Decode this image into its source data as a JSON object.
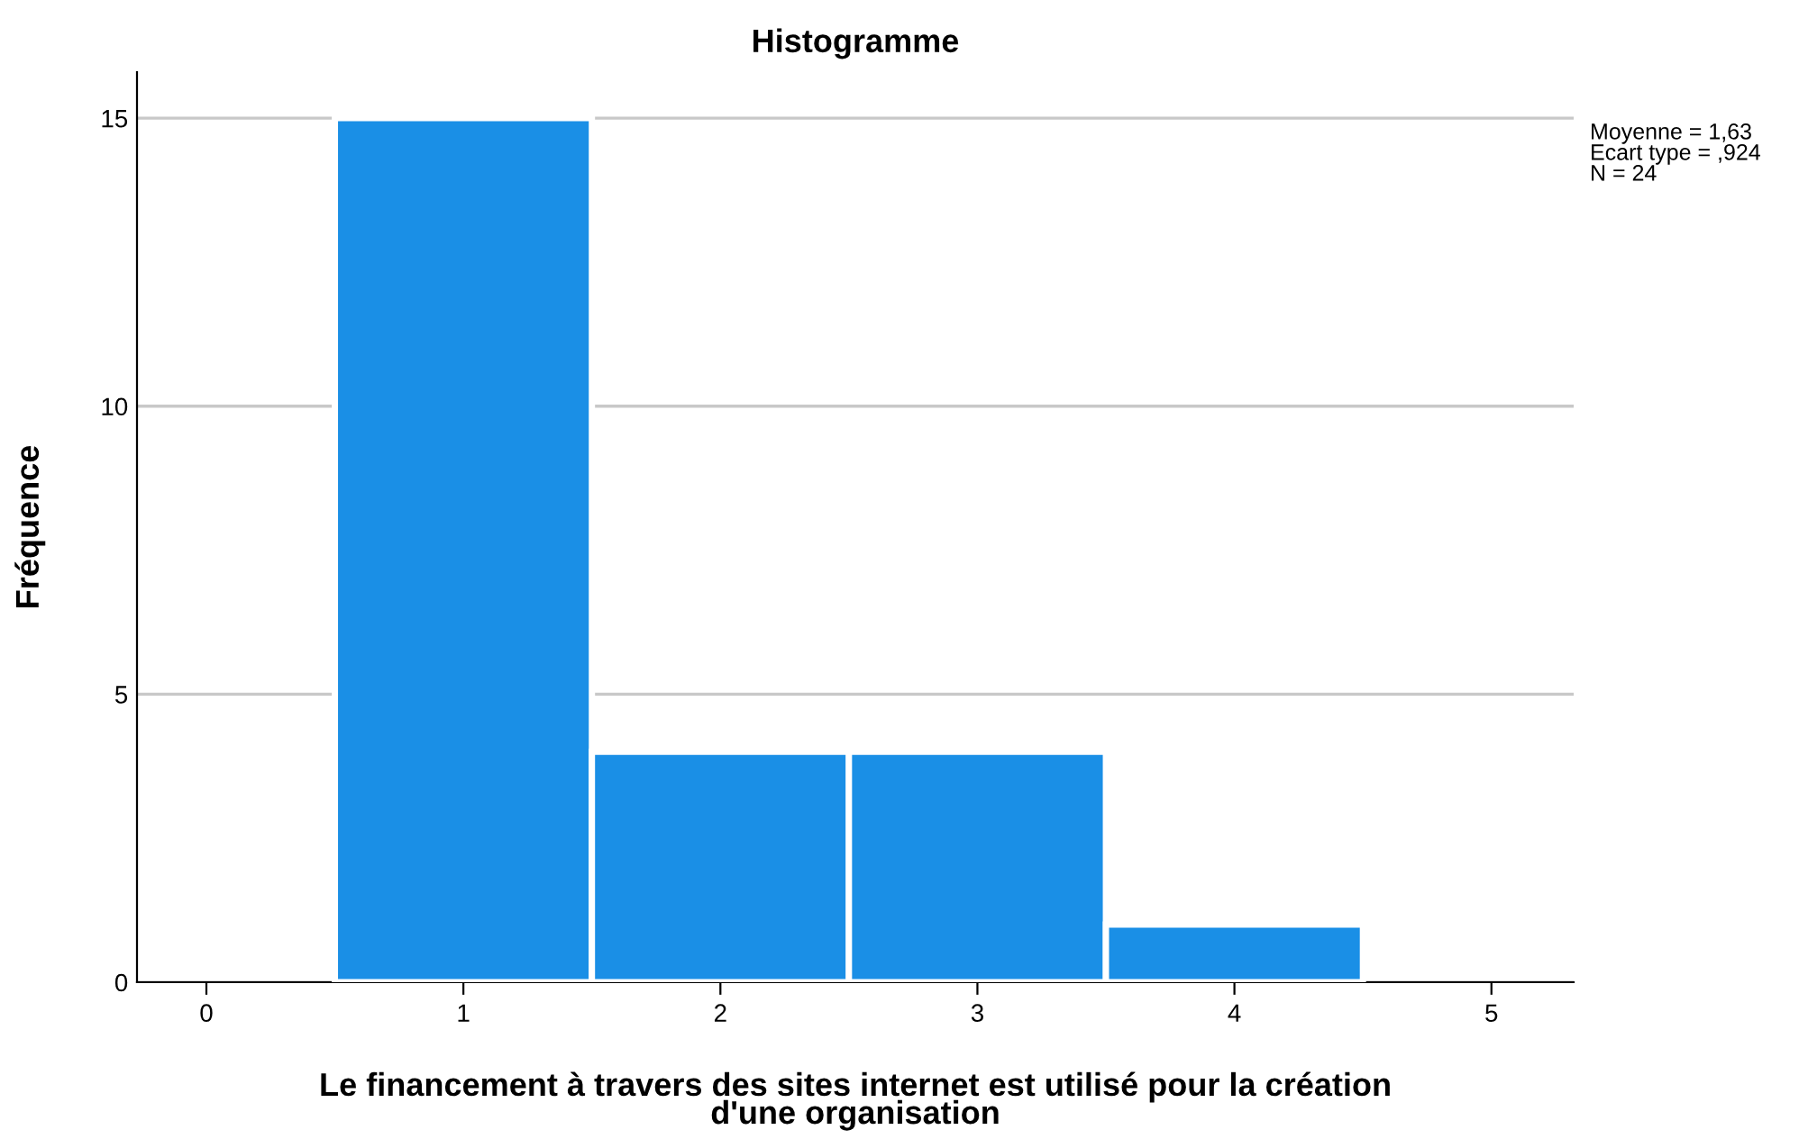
{
  "chart_data": {
    "type": "histogram",
    "title": "Histogramme",
    "xlabel": "Le financement à travers des sites internet est utilisé pour la création\nd'une organisation",
    "ylabel": "Fréquence",
    "bins": [
      0.5,
      1.5,
      2.5,
      3.5,
      4.5
    ],
    "values": [
      15,
      4,
      4,
      1
    ],
    "color": "#1a8fe6",
    "xlim": [
      -0.27,
      5.32
    ],
    "xticks": [
      0,
      1,
      2,
      3,
      4,
      5
    ],
    "ylim": [
      0,
      15.8
    ],
    "yticks": [
      0,
      5,
      10,
      15
    ],
    "grid": "y",
    "legend": false,
    "annotations": [
      "Moyenne = 1,63",
      "Ecart type = ,924",
      "N = 24"
    ]
  }
}
